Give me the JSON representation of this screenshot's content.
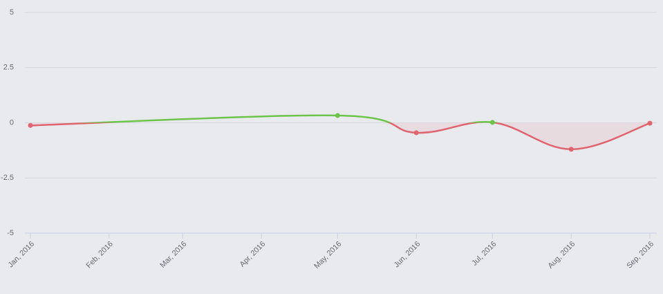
{
  "chart_data": {
    "type": "line",
    "x": [
      "Jan, 2016",
      "May, 2016",
      "Jun, 2016",
      "Jul, 2016",
      "Aug, 2016",
      "Sep, 2016"
    ],
    "series": [
      {
        "values": [
          -0.12,
          0.33,
          -0.45,
          0.02,
          -1.2,
          -0.02
        ],
        "color": "#6cc54a",
        "negative_color": "#e0646f",
        "negative_fill": "#e8d7dd"
      }
    ],
    "xlim": [
      "Jan, 2016",
      "Sep, 2016"
    ],
    "xticks": [
      "Jan, 2016",
      "Feb, 2016",
      "Mar, 2016",
      "Apr, 2016",
      "May, 2016",
      "Jun, 2016",
      "Jul, 2016",
      "Aug, 2016",
      "Sep, 2016"
    ],
    "ylim": [
      -5,
      5
    ],
    "yticks": [
      -5,
      -2.5,
      0,
      2.5,
      5
    ],
    "grid": true
  }
}
